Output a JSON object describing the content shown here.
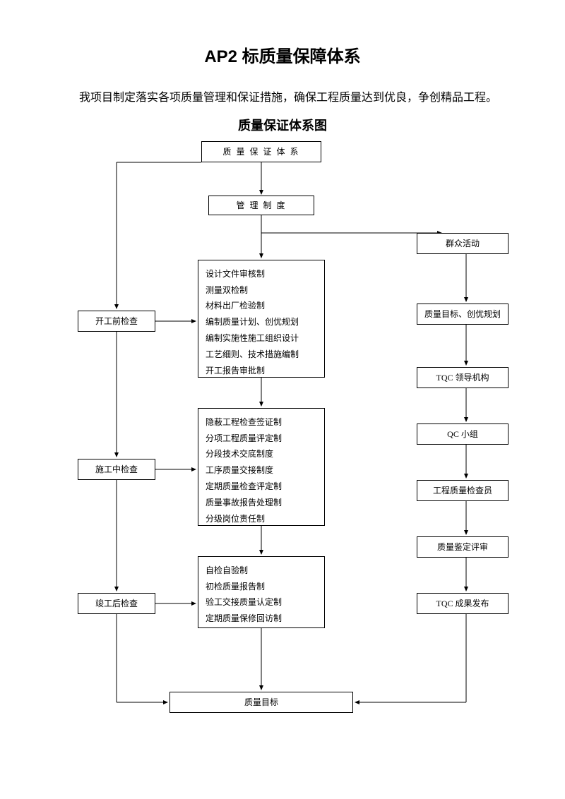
{
  "title": "AP2 标质量保障体系",
  "intro": "我项目制定落实各项质量管理和保证措施，确保工程质量达到优良，争创精品工程。",
  "subtitle": "质量保证体系图",
  "nodes": {
    "top": "质 量 保 证 体 系",
    "mgmt": "管 理 制 度",
    "activity": "群众活动",
    "left1": "开工前检查",
    "left2": "施工中检查",
    "left3": "竣工后检查",
    "mid1_items": [
      "设计文件审核制",
      "测量双检制",
      "材料出厂检验制",
      "编制质量计划、创优规划",
      "编制实施性施工组织设计",
      "工艺细则、技术措施编制",
      "开工报告审批制"
    ],
    "mid2_items": [
      "隐蔽工程检查签证制",
      "分项工程质量评定制",
      "分段技术交底制度",
      "工序质量交接制度",
      "定期质量检查评定制",
      "质量事故报告处理制",
      "分级岗位责任制"
    ],
    "mid3_items": [
      "自检自验制",
      "初检质量报告制",
      "验工交接质量认定制",
      "定期质量保修回访制"
    ],
    "right1": "质量目标、创优规划",
    "right2": "TQC 领导机构",
    "right3": "QC 小组",
    "right4": "工程质量检查员",
    "right5": "质量鉴定评审",
    "right6": "TQC 成果发布",
    "goal": "质量目标"
  },
  "style": {
    "border_color": "#000000",
    "bg_color": "#ffffff",
    "box_font_size": 12,
    "title_font_size": 24,
    "line_width": 1
  }
}
